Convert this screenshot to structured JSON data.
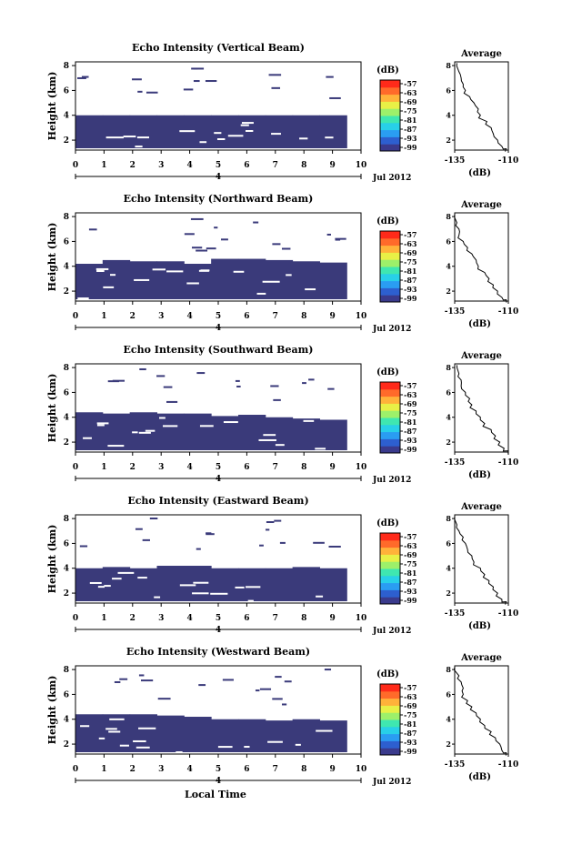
{
  "colors": {
    "dark_echo": "#3a3a7a",
    "colorbar": [
      "#3a3a8c",
      "#2d5fcf",
      "#2a9df2",
      "#28d0e8",
      "#3fe7b0",
      "#9df06a",
      "#e8f046",
      "#ffb23a",
      "#ff6a2a",
      "#ff2a1a"
    ]
  },
  "shared": {
    "x_ticks": [
      "0",
      "1",
      "2",
      "3",
      "4",
      "5",
      "6",
      "7",
      "8",
      "9",
      "10"
    ],
    "date_tick": "4",
    "date_label": "Jul 2012",
    "ylabel": "Height (km)",
    "y_ticks": [
      "2",
      "4",
      "6",
      "8"
    ],
    "unit_label": "(dB)",
    "colorbar_ticks": [
      "-57",
      "-63",
      "-69",
      "-75",
      "-81",
      "-87",
      "-93",
      "-99"
    ],
    "avg_title": "Average",
    "avg_x_ticks": [
      "-135",
      "-110"
    ],
    "avg_xlabel": "(dB)",
    "xlabel": "Local Time"
  },
  "chart_data": [
    {
      "type": "heatmap",
      "title": "Echo Intensity (Vertical Beam)",
      "xlabel": "Local Time",
      "ylabel": "Height (km)",
      "xlim": [
        0,
        10
      ],
      "ylim": [
        1.2,
        8.3
      ],
      "colorbar": {
        "label": "(dB)",
        "ticks": [
          -57,
          -63,
          -69,
          -75,
          -81,
          -87,
          -93,
          -99
        ]
      },
      "echo_top_km": [
        4.0,
        4.0,
        4.0,
        4.0,
        4.0,
        4.0,
        4.0,
        4.0,
        4.0,
        4.0
      ],
      "data_end_time": 9.5,
      "average_profile": {
        "xlim": [
          -135,
          -110
        ],
        "ylim": [
          1.2,
          8.3
        ],
        "heights": [
          8.2,
          7.5,
          7.0,
          6.5,
          6.0,
          5.5,
          5.0,
          4.5,
          4.0,
          3.5,
          3.0,
          2.5,
          2.0,
          1.5,
          1.3
        ],
        "db": [
          -134,
          -133,
          -132,
          -131,
          -130,
          -128,
          -126,
          -124,
          -123,
          -120,
          -118,
          -117,
          -115,
          -113,
          -111
        ]
      }
    },
    {
      "type": "heatmap",
      "title": "Echo Intensity (Northward Beam)",
      "xlabel": "Local Time",
      "ylabel": "Height (km)",
      "xlim": [
        0,
        10
      ],
      "ylim": [
        1.2,
        8.3
      ],
      "colorbar": {
        "label": "(dB)",
        "ticks": [
          -57,
          -63,
          -69,
          -75,
          -81,
          -87,
          -93,
          -99
        ]
      },
      "echo_top_km": [
        4.2,
        4.5,
        4.4,
        4.4,
        4.2,
        4.6,
        4.6,
        4.5,
        4.4,
        4.3
      ],
      "data_end_time": 9.5,
      "average_profile": {
        "xlim": [
          -135,
          -110
        ],
        "ylim": [
          1.2,
          8.3
        ],
        "heights": [
          8.2,
          7.5,
          7.0,
          6.5,
          6.0,
          5.5,
          5.0,
          4.5,
          4.0,
          3.5,
          3.0,
          2.5,
          2.0,
          1.5,
          1.3
        ],
        "db": [
          -135,
          -134,
          -133,
          -133,
          -131,
          -129,
          -127,
          -125,
          -124,
          -121,
          -119,
          -117,
          -115,
          -113,
          -111
        ]
      }
    },
    {
      "type": "heatmap",
      "title": "Echo Intensity (Southward Beam)",
      "xlabel": "Local Time",
      "ylabel": "Height (km)",
      "xlim": [
        0,
        10
      ],
      "ylim": [
        1.2,
        8.3
      ],
      "colorbar": {
        "label": "(dB)",
        "ticks": [
          -57,
          -63,
          -69,
          -75,
          -81,
          -87,
          -93,
          -99
        ]
      },
      "echo_top_km": [
        4.4,
        4.3,
        4.4,
        4.3,
        4.3,
        4.1,
        4.2,
        4.0,
        3.9,
        3.8
      ],
      "data_end_time": 9.5,
      "average_profile": {
        "xlim": [
          -135,
          -110
        ],
        "ylim": [
          1.2,
          8.3
        ],
        "heights": [
          8.2,
          7.5,
          7.0,
          6.5,
          6.0,
          5.5,
          5.0,
          4.5,
          4.0,
          3.5,
          3.0,
          2.5,
          2.0,
          1.5,
          1.3
        ],
        "db": [
          -134,
          -133,
          -132,
          -132,
          -130,
          -128,
          -127,
          -125,
          -123,
          -121,
          -118,
          -116,
          -114,
          -112,
          -110
        ]
      }
    },
    {
      "type": "heatmap",
      "title": "Echo Intensity (Eastward Beam)",
      "xlabel": "Local Time",
      "ylabel": "Height (km)",
      "xlim": [
        0,
        10
      ],
      "ylim": [
        1.2,
        8.3
      ],
      "colorbar": {
        "label": "(dB)",
        "ticks": [
          -57,
          -63,
          -69,
          -75,
          -81,
          -87,
          -93,
          -99
        ]
      },
      "echo_top_km": [
        4.0,
        4.1,
        4.0,
        4.2,
        4.2,
        4.0,
        4.0,
        4.0,
        4.1,
        4.0
      ],
      "data_end_time": 9.5,
      "average_profile": {
        "xlim": [
          -135,
          -110
        ],
        "ylim": [
          1.2,
          8.3
        ],
        "heights": [
          8.2,
          7.5,
          7.0,
          6.5,
          6.0,
          5.5,
          5.0,
          4.5,
          4.0,
          3.5,
          3.0,
          2.5,
          2.0,
          1.5,
          1.3
        ],
        "db": [
          -135,
          -134,
          -133,
          -131,
          -130,
          -129,
          -127,
          -126,
          -123,
          -121,
          -119,
          -117,
          -115,
          -113,
          -111
        ]
      }
    },
    {
      "type": "heatmap",
      "title": "Echo Intensity (Westward Beam)",
      "xlabel": "Local Time",
      "ylabel": "Height (km)",
      "xlim": [
        0,
        10
      ],
      "ylim": [
        1.2,
        8.3
      ],
      "colorbar": {
        "label": "(dB)",
        "ticks": [
          -57,
          -63,
          -69,
          -75,
          -81,
          -87,
          -93,
          -99
        ]
      },
      "echo_top_km": [
        4.4,
        4.4,
        4.4,
        4.3,
        4.2,
        4.0,
        4.0,
        3.9,
        4.0,
        3.9
      ],
      "data_end_time": 9.5,
      "average_profile": {
        "xlim": [
          -135,
          -110
        ],
        "ylim": [
          1.2,
          8.3
        ],
        "heights": [
          8.2,
          7.5,
          7.0,
          6.5,
          6.0,
          5.5,
          5.0,
          4.5,
          4.0,
          3.5,
          3.0,
          2.5,
          2.0,
          1.5,
          1.3
        ],
        "db": [
          -135,
          -133,
          -132,
          -131,
          -131,
          -129,
          -127,
          -125,
          -123,
          -121,
          -118,
          -116,
          -114,
          -113,
          -111
        ]
      }
    }
  ]
}
